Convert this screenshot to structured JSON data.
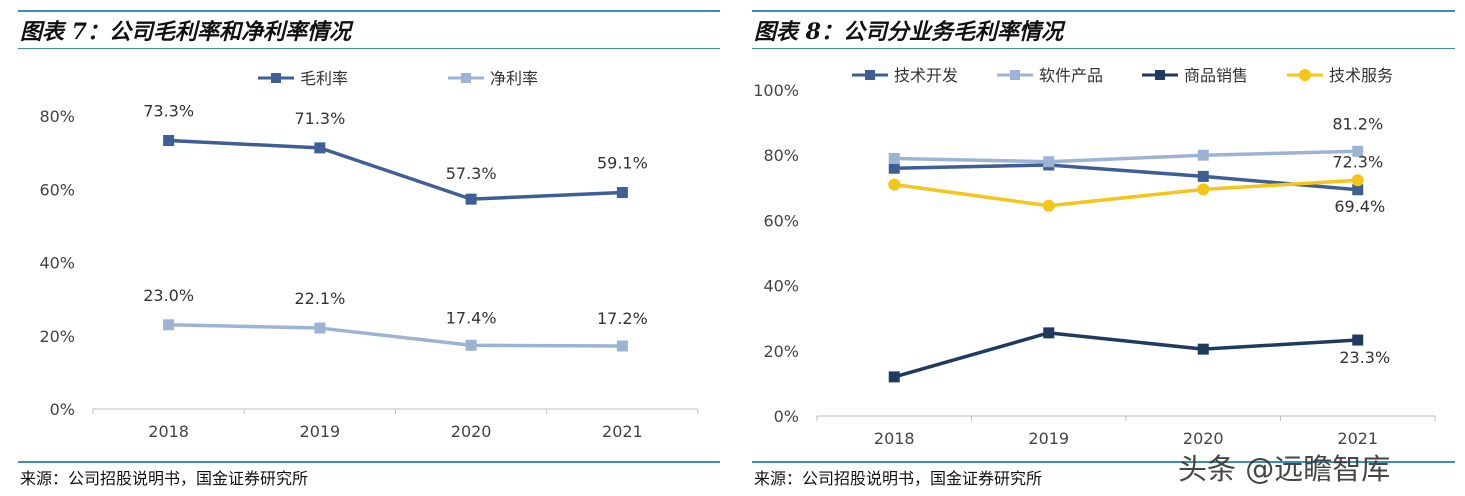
{
  "charts": [
    {
      "title": "图表 7：公司毛利率和净利率情况",
      "source": "来源：公司招股说明书，国金证券研究所"
    },
    {
      "title": "图表 8：公司分业务毛利率情况",
      "source": "来源：公司招股说明书，国金证券研究所"
    }
  ],
  "watermark": "头条 @远瞻智库",
  "chart_data": [
    {
      "type": "line",
      "title": "图表 7：公司毛利率和净利率情况",
      "categories": [
        "2018",
        "2019",
        "2020",
        "2021"
      ],
      "y_ticks": [
        "0%",
        "20%",
        "40%",
        "60%",
        "80%"
      ],
      "ylim": [
        0,
        80
      ],
      "grid": false,
      "legend_position": "top",
      "series": [
        {
          "name": "毛利率",
          "color": "#3d5f93",
          "values": [
            73.3,
            71.3,
            57.3,
            59.1
          ],
          "labels": [
            "73.3%",
            "71.3%",
            "57.3%",
            "59.1%"
          ]
        },
        {
          "name": "净利率",
          "color": "#9db3d6",
          "values": [
            23.0,
            22.1,
            17.4,
            17.2
          ],
          "labels": [
            "23.0%",
            "22.1%",
            "17.4%",
            "17.2%"
          ]
        }
      ]
    },
    {
      "type": "line",
      "title": "图表 8：公司分业务毛利率情况",
      "categories": [
        "2018",
        "2019",
        "2020",
        "2021"
      ],
      "y_ticks": [
        "0%",
        "20%",
        "40%",
        "60%",
        "80%",
        "100%"
      ],
      "ylim": [
        0,
        100
      ],
      "grid": false,
      "legend_position": "top",
      "series": [
        {
          "name": "技术开发",
          "color": "#3d5f93",
          "values": [
            76.0,
            77.0,
            73.5,
            69.4
          ],
          "labels": [
            "",
            "",
            "",
            "69.4%"
          ]
        },
        {
          "name": "软件产品",
          "color": "#9db3d6",
          "values": [
            79.0,
            78.0,
            80.0,
            81.2
          ],
          "labels": [
            "",
            "",
            "",
            "81.2%"
          ]
        },
        {
          "name": "商品销售",
          "color": "#1f3a5f",
          "values": [
            12.0,
            25.5,
            20.5,
            23.3
          ],
          "labels": [
            "",
            "",
            "",
            "23.3%"
          ]
        },
        {
          "name": "技术服务",
          "color": "#f5c518",
          "values": [
            71.0,
            64.5,
            69.5,
            72.3
          ],
          "labels": [
            "",
            "",
            "",
            "72.3%"
          ]
        }
      ]
    }
  ]
}
